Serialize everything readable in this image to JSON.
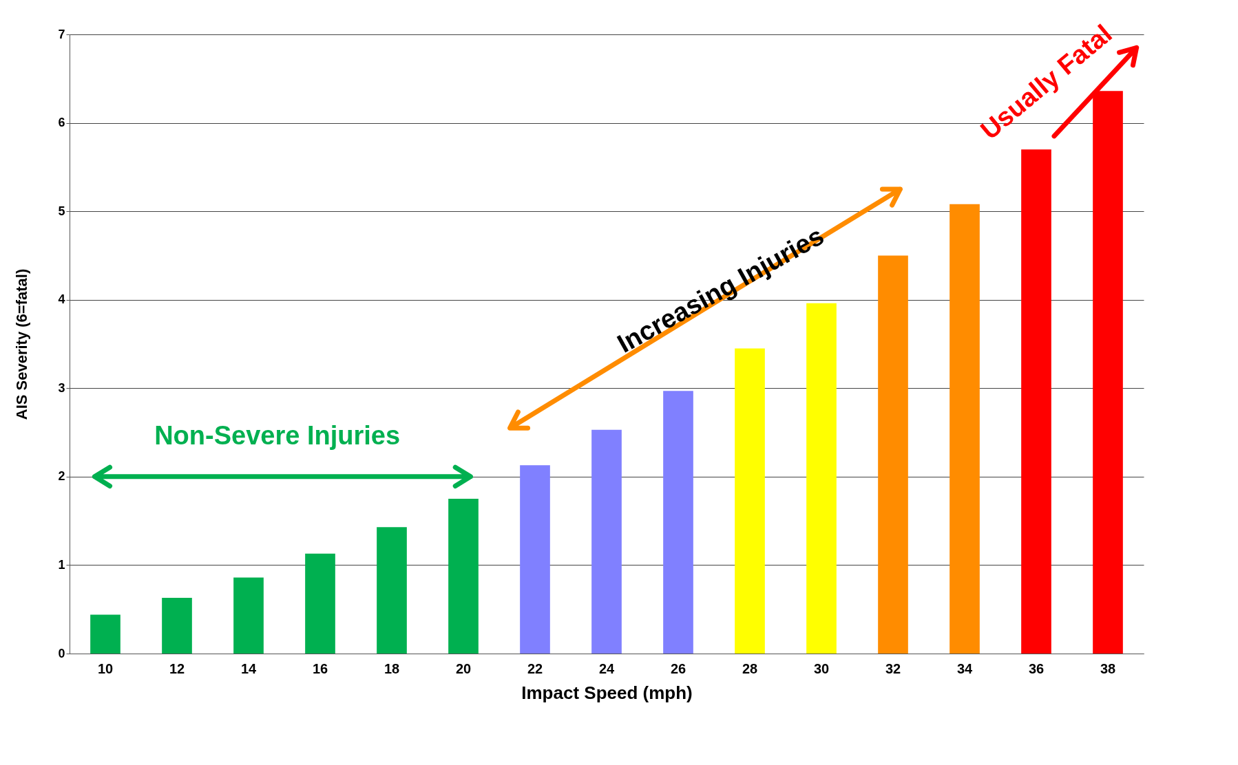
{
  "chart_data": {
    "type": "bar",
    "xlabel": "Impact Speed (mph)",
    "ylabel": "AIS Severity (6=fatal)",
    "categories": [
      "10",
      "12",
      "14",
      "16",
      "18",
      "20",
      "22",
      "24",
      "26",
      "28",
      "30",
      "32",
      "34",
      "36",
      "38"
    ],
    "values": [
      0.44,
      0.63,
      0.86,
      1.13,
      1.43,
      1.75,
      2.13,
      2.53,
      2.97,
      3.45,
      3.96,
      4.5,
      5.08,
      5.7,
      6.36
    ],
    "colors": [
      "#00b050",
      "#00b050",
      "#00b050",
      "#00b050",
      "#00b050",
      "#00b050",
      "#8080ff",
      "#8080ff",
      "#8080ff",
      "#ffff00",
      "#ffff00",
      "#ff8c00",
      "#ff8c00",
      "#ff0000",
      "#ff0000"
    ],
    "ylim": [
      0,
      7
    ],
    "yticks": [
      0,
      1,
      2,
      3,
      4,
      5,
      6,
      7
    ],
    "grid": "y",
    "annotations": [
      "Non-Severe Injuries",
      "Increasing Injuries",
      "Usually Fatal"
    ]
  }
}
